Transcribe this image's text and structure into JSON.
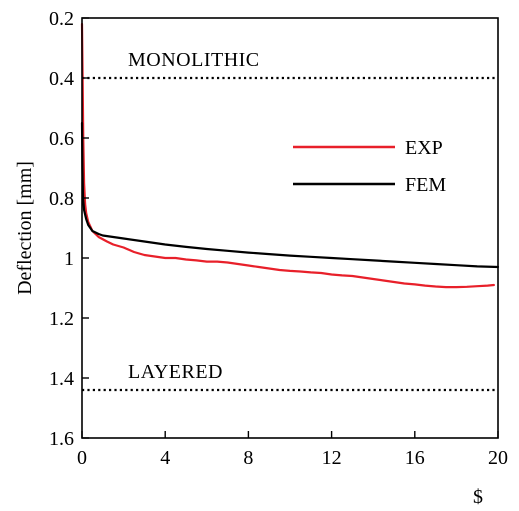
{
  "chart_data": {
    "type": "line",
    "title": "",
    "xlabel": "$",
    "ylabel": "Deflection [mm]",
    "xlim": [
      0,
      20
    ],
    "ylim": [
      0.2,
      1.6
    ],
    "y_inverted": true,
    "grid": false,
    "legend_placement": "right",
    "x_ticks": [
      0,
      4,
      8,
      12,
      16,
      20
    ],
    "y_ticks": [
      0.2,
      0.4,
      0.6,
      0.8,
      1,
      1.2,
      1.4,
      1.6
    ],
    "x_tick_labels": [
      "0",
      "4",
      "8",
      "12",
      "16",
      "20"
    ],
    "y_tick_labels": [
      "0.2",
      "0.4",
      "0.6",
      "0.8",
      "1",
      "1.2",
      "1.4",
      "1.6"
    ],
    "series": [
      {
        "name": "EXP",
        "color": "#e8202a",
        "x": [
          0,
          0.03,
          0.06,
          0.1,
          0.15,
          0.2,
          0.3,
          0.5,
          0.8,
          1.2,
          1.5,
          2,
          2.5,
          3,
          3.5,
          4,
          4.5,
          5,
          5.5,
          6,
          6.5,
          7,
          7.5,
          8,
          8.5,
          9,
          9.5,
          10,
          10.5,
          11,
          11.5,
          12,
          12.5,
          13,
          13.5,
          14,
          14.5,
          15,
          15.5,
          16,
          16.5,
          17,
          17.5,
          18,
          18.5,
          19,
          19.5,
          19.8
        ],
        "y": [
          0.22,
          0.4,
          0.6,
          0.75,
          0.82,
          0.85,
          0.88,
          0.91,
          0.93,
          0.945,
          0.955,
          0.965,
          0.98,
          0.99,
          0.995,
          1.0,
          1.0,
          1.005,
          1.008,
          1.012,
          1.012,
          1.015,
          1.02,
          1.025,
          1.03,
          1.035,
          1.04,
          1.043,
          1.045,
          1.048,
          1.05,
          1.055,
          1.058,
          1.06,
          1.065,
          1.07,
          1.075,
          1.08,
          1.085,
          1.088,
          1.092,
          1.095,
          1.097,
          1.097,
          1.096,
          1.094,
          1.092,
          1.09
        ]
      },
      {
        "name": "FEM",
        "color": "#000000",
        "x": [
          0,
          0.02,
          0.05,
          0.1,
          0.2,
          0.3,
          0.5,
          0.8,
          1,
          1.5,
          2,
          3,
          4,
          5,
          6,
          7,
          8,
          9,
          10,
          11,
          12,
          13,
          14,
          15,
          16,
          17,
          18,
          19,
          20
        ],
        "y": [
          0.55,
          0.7,
          0.8,
          0.84,
          0.87,
          0.89,
          0.91,
          0.92,
          0.925,
          0.93,
          0.935,
          0.945,
          0.955,
          0.963,
          0.97,
          0.976,
          0.982,
          0.987,
          0.992,
          0.996,
          1.0,
          1.004,
          1.008,
          1.012,
          1.016,
          1.02,
          1.024,
          1.028,
          1.03
        ]
      }
    ],
    "reference_lines": [
      {
        "label": "MONOLITHIC",
        "y": 0.4,
        "style": "dotted"
      },
      {
        "label": "LAYERED",
        "y": 1.44,
        "style": "dotted"
      }
    ]
  }
}
